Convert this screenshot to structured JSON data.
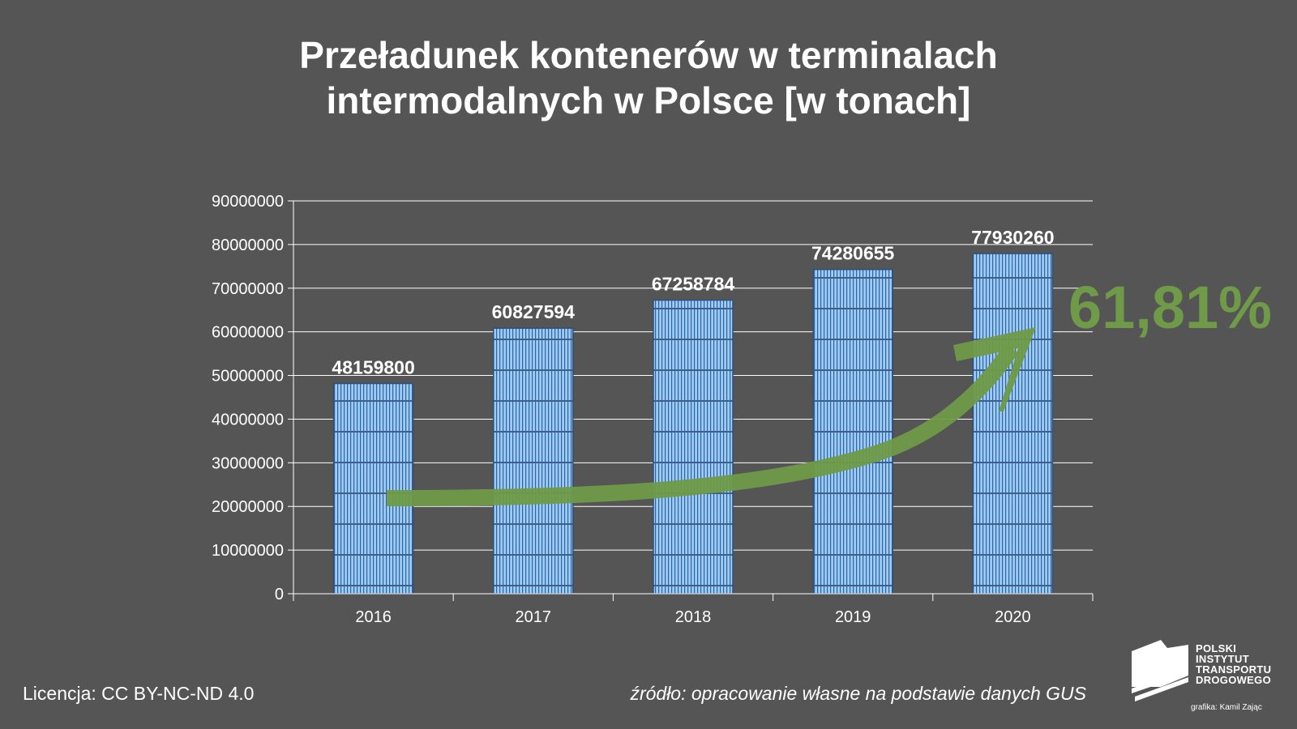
{
  "title": {
    "line1": "Przeładunek kontenerów w terminalach",
    "line2": "intermodalnych w Polsce [w tonach]"
  },
  "chart_data": {
    "type": "bar",
    "categories": [
      "2016",
      "2017",
      "2018",
      "2019",
      "2020"
    ],
    "values": [
      48159800,
      60827594,
      67258784,
      74280655,
      77930260
    ],
    "value_labels": [
      "48159800",
      "60827594",
      "67258784",
      "74280655",
      "77930260"
    ],
    "y_ticks": [
      "0",
      "10000000",
      "20000000",
      "30000000",
      "40000000",
      "50000000",
      "60000000",
      "70000000",
      "80000000",
      "90000000"
    ],
    "ylim": [
      0,
      90000000
    ],
    "grid": true,
    "bar_color": "#99ccff",
    "growth_annotation": "61,81%",
    "arrow_color": "#6f9a48"
  },
  "footer": {
    "license": "Licencja: CC BY-NC-ND 4.0",
    "source": "źródło: opracowanie własne na podstawie danych GUS"
  },
  "logo": {
    "lines": [
      "POLSKI",
      "INSTYTUT",
      "TRANSPORTU",
      "DROGOWEGO"
    ],
    "credit": "grafika: Kamil Zając"
  }
}
